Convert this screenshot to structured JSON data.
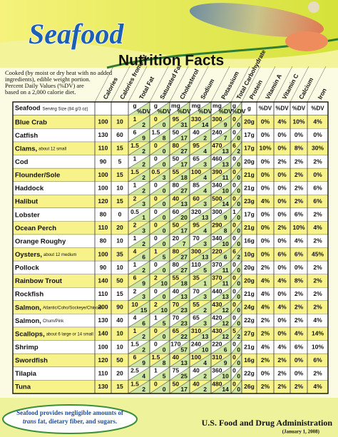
{
  "header": {
    "title": "Seafood",
    "subtitle": "Nutrition Facts"
  },
  "intro": [
    "Cooked (by moist or dry heat with no added",
    "ingredients), edible weight portion.",
    "Percent Daily Values (%DV) are",
    "based on a 2,000 calorie diet."
  ],
  "table": {
    "columns": [
      "Calories",
      "Calories from Fat",
      "Total Fat",
      "Saturated Fat",
      "Cholesterol",
      "Sodium",
      "Potassium",
      "Total Carbohydrate",
      "Protein",
      "Vitamin A",
      "Vitamin C",
      "Calcium",
      "Iron"
    ],
    "subheader": {
      "label": "Seafood",
      "serving": "Serving Size (84 g/3 oz)",
      "units": [
        "g",
        "%DV",
        "g",
        "%DV",
        "mg",
        "%DV",
        "mg",
        "%DV",
        "mg",
        "%DV",
        "g",
        "%DV",
        "g",
        "%DV",
        "%DV",
        "%DV",
        "%DV"
      ]
    },
    "rows": [
      {
        "name": "Blue Crab",
        "values": [
          100,
          10,
          1,
          2,
          0,
          0,
          95,
          31,
          330,
          14,
          300,
          9,
          0,
          0,
          "20g",
          "0%",
          "4%",
          "10%",
          "4%"
        ]
      },
      {
        "name": "Catfish",
        "values": [
          130,
          60,
          6,
          9,
          1.5,
          8,
          50,
          17,
          40,
          2,
          240,
          7,
          0,
          0,
          "17g",
          "0%",
          "0%",
          "0%",
          "0%"
        ]
      },
      {
        "name": "Clams,",
        "note": "about 12 small",
        "values": [
          110,
          15,
          1.5,
          2,
          0,
          0,
          80,
          27,
          95,
          4,
          470,
          13,
          6,
          2,
          "17g",
          "10%",
          "0%",
          "8%",
          "30%"
        ]
      },
      {
        "name": "Cod",
        "values": [
          90,
          5,
          1,
          2,
          0,
          0,
          50,
          17,
          65,
          3,
          460,
          13,
          0,
          0,
          "20g",
          "0%",
          "2%",
          "2%",
          "2%"
        ]
      },
      {
        "name": "Flounder/Sole",
        "values": [
          100,
          15,
          1.5,
          2,
          0.5,
          3,
          55,
          18,
          100,
          4,
          390,
          11,
          0,
          0,
          "21g",
          "0%",
          "0%",
          "2%",
          "0%"
        ]
      },
      {
        "name": "Haddock",
        "values": [
          100,
          10,
          1,
          2,
          0,
          0,
          80,
          27,
          85,
          4,
          340,
          10,
          0,
          0,
          "21g",
          "0%",
          "0%",
          "2%",
          "6%"
        ]
      },
      {
        "name": "Halibut",
        "values": [
          120,
          15,
          2,
          3,
          0,
          0,
          40,
          13,
          60,
          3,
          500,
          14,
          0,
          0,
          "23g",
          "4%",
          "0%",
          "2%",
          "6%"
        ]
      },
      {
        "name": "Lobster",
        "values": [
          80,
          0,
          0.5,
          1,
          0,
          0,
          60,
          20,
          320,
          13,
          300,
          9,
          1,
          0,
          "17g",
          "0%",
          "0%",
          "6%",
          "2%"
        ]
      },
      {
        "name": "Ocean Perch",
        "values": [
          110,
          20,
          2,
          3,
          0,
          0,
          50,
          17,
          95,
          4,
          290,
          8,
          0,
          0,
          "21g",
          "0%",
          "2%",
          "10%",
          "4%"
        ]
      },
      {
        "name": "Orange Roughy",
        "values": [
          80,
          10,
          1,
          2,
          0,
          0,
          20,
          7,
          70,
          3,
          340,
          10,
          0,
          0,
          "16g",
          "0%",
          "0%",
          "4%",
          "2%"
        ]
      },
      {
        "name": "Oysters,",
        "note": "about 12 medium",
        "values": [
          100,
          35,
          4,
          6,
          1,
          5,
          80,
          27,
          300,
          13,
          220,
          6,
          6,
          2,
          "10g",
          "0%",
          "6%",
          "6%",
          "45%"
        ]
      },
      {
        "name": "Pollock",
        "values": [
          90,
          10,
          1,
          2,
          0,
          0,
          80,
          27,
          110,
          5,
          370,
          11,
          0,
          0,
          "20g",
          "2%",
          "0%",
          "0%",
          "2%"
        ]
      },
      {
        "name": "Rainbow Trout",
        "values": [
          140,
          50,
          6,
          9,
          2,
          10,
          55,
          18,
          35,
          1,
          370,
          11,
          0,
          0,
          "20g",
          "4%",
          "4%",
          "8%",
          "2%"
        ]
      },
      {
        "name": "Rockfish",
        "values": [
          110,
          15,
          2,
          3,
          0,
          0,
          40,
          13,
          70,
          3,
          440,
          13,
          0,
          0,
          "21g",
          "4%",
          "0%",
          "2%",
          "2%"
        ]
      },
      {
        "name": "Salmon,",
        "note": "Atlantic/Coho/Sockeye/Chinook",
        "values": [
          200,
          90,
          10,
          15,
          2,
          10,
          70,
          23,
          55,
          2,
          430,
          12,
          0,
          0,
          "24g",
          "4%",
          "4%",
          "2%",
          "2%"
        ]
      },
      {
        "name": "Salmon,",
        "note": "Chum/Pink",
        "values": [
          130,
          40,
          4,
          6,
          1,
          5,
          70,
          23,
          65,
          3,
          420,
          12,
          0,
          0,
          "22g",
          "2%",
          "0%",
          "2%",
          "4%"
        ]
      },
      {
        "name": "Scallops,",
        "note": "about 6 large or 14 small",
        "values": [
          140,
          10,
          1,
          2,
          0,
          0,
          65,
          22,
          310,
          13,
          430,
          12,
          5,
          2,
          "27g",
          "2%",
          "0%",
          "4%",
          "14%"
        ]
      },
      {
        "name": "Shrimp",
        "values": [
          100,
          10,
          1.5,
          2,
          0,
          0,
          170,
          57,
          240,
          10,
          220,
          6,
          0,
          0,
          "21g",
          "4%",
          "4%",
          "6%",
          "10%"
        ]
      },
      {
        "name": "Swordfish",
        "values": [
          120,
          50,
          6,
          9,
          1.5,
          8,
          40,
          13,
          100,
          4,
          310,
          9,
          0,
          0,
          "16g",
          "2%",
          "2%",
          "0%",
          "6%"
        ]
      },
      {
        "name": "Tilapia",
        "values": [
          110,
          20,
          2.5,
          4,
          1,
          5,
          75,
          25,
          40,
          2,
          360,
          10,
          0,
          0,
          "22g",
          "0%",
          "2%",
          "0%",
          "2%"
        ]
      },
      {
        "name": "Tuna",
        "values": [
          130,
          15,
          1.5,
          2,
          0,
          0,
          50,
          17,
          40,
          2,
          480,
          14,
          0,
          0,
          "26g",
          "2%",
          "2%",
          "2%",
          "4%"
        ]
      }
    ]
  },
  "footer": {
    "note_line1": "Seafood provides negligible amounts of",
    "note_emphasis": "trans",
    "note_line2": "fat, dietary fiber, and sugars.",
    "agency": "U.S. Food and Drug Administration",
    "date": "(January 1, 2008)"
  }
}
